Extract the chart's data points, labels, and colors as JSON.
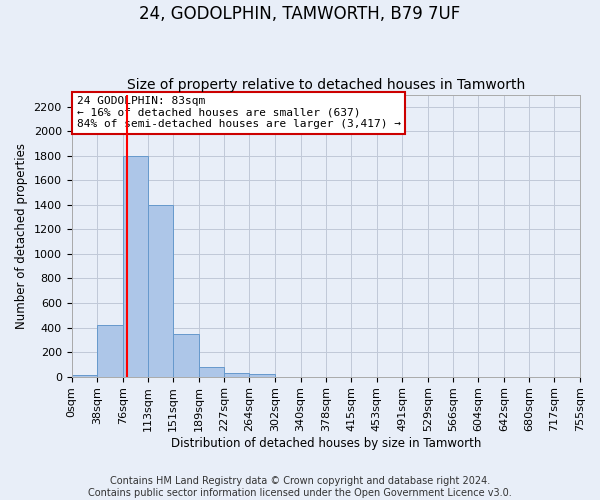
{
  "title": "24, GODOLPHIN, TAMWORTH, B79 7UF",
  "subtitle": "Size of property relative to detached houses in Tamworth",
  "xlabel": "Distribution of detached houses by size in Tamworth",
  "ylabel": "Number of detached properties",
  "footer_line1": "Contains HM Land Registry data © Crown copyright and database right 2024.",
  "footer_line2": "Contains public sector information licensed under the Open Government Licence v3.0.",
  "bin_edges": [
    0,
    38,
    76,
    113,
    151,
    189,
    227,
    264,
    302,
    340,
    378,
    415,
    453,
    491,
    529,
    566,
    604,
    642,
    680,
    717,
    755
  ],
  "bar_heights": [
    15,
    420,
    1800,
    1400,
    350,
    80,
    30,
    18,
    0,
    0,
    0,
    0,
    0,
    0,
    0,
    0,
    0,
    0,
    0,
    0
  ],
  "bar_color": "#adc6e8",
  "bar_edgecolor": "#6699cc",
  "grid_color": "#c0c8d8",
  "background_color": "#e8eef8",
  "red_line_x": 83,
  "annotation_line1": "24 GODOLPHIN: 83sqm",
  "annotation_line2": "← 16% of detached houses are smaller (637)",
  "annotation_line3": "84% of semi-detached houses are larger (3,417) →",
  "annotation_box_color": "#ffffff",
  "annotation_box_edgecolor": "#cc0000",
  "ylim": [
    0,
    2300
  ],
  "yticks": [
    0,
    200,
    400,
    600,
    800,
    1000,
    1200,
    1400,
    1600,
    1800,
    2000,
    2200
  ],
  "title_fontsize": 12,
  "subtitle_fontsize": 10,
  "axis_label_fontsize": 8.5,
  "tick_fontsize": 8,
  "annotation_fontsize": 8,
  "footer_fontsize": 7
}
